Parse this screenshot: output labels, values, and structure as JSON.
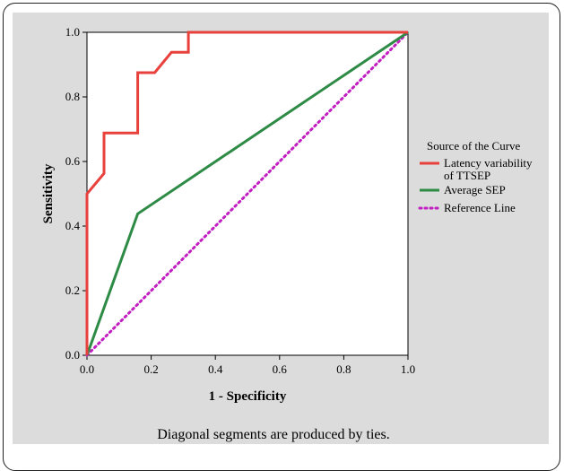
{
  "chart_data": {
    "type": "line",
    "title": "",
    "xlabel": "1 - Specificity",
    "ylabel": "Sensitivity",
    "xlim": [
      0,
      1
    ],
    "ylim": [
      0,
      1
    ],
    "x_ticks": [
      "0.0",
      "0.2",
      "0.4",
      "0.6",
      "0.8",
      "1.0"
    ],
    "y_ticks": [
      "0.0",
      "0.2",
      "0.4",
      "0.6",
      "0.8",
      "1.0"
    ],
    "grid": false,
    "legend": {
      "title": "Source of the Curve",
      "placement": "right"
    },
    "series": [
      {
        "name": "Latency variability of TTSEP",
        "name_lines": [
          "Latency variability",
          "of TTSEP"
        ],
        "color": "#e8413c",
        "style": "solid",
        "points": [
          [
            0,
            0
          ],
          [
            0,
            0.5
          ],
          [
            0.053,
            0.563
          ],
          [
            0.053,
            0.688
          ],
          [
            0.158,
            0.688
          ],
          [
            0.158,
            0.875
          ],
          [
            0.211,
            0.875
          ],
          [
            0.263,
            0.938
          ],
          [
            0.316,
            0.938
          ],
          [
            0.316,
            1.0
          ],
          [
            1.0,
            1.0
          ]
        ]
      },
      {
        "name": "Average SEP",
        "color": "#2e8b46",
        "style": "solid",
        "points": [
          [
            0,
            0
          ],
          [
            0.158,
            0.438
          ],
          [
            1.0,
            1.0
          ]
        ]
      },
      {
        "name": "Reference Line",
        "color": "#c21fc2",
        "style": "dotted",
        "points": [
          [
            0,
            0
          ],
          [
            1,
            1
          ]
        ]
      }
    ],
    "annotation": "Diagonal segments are produced by ties."
  }
}
